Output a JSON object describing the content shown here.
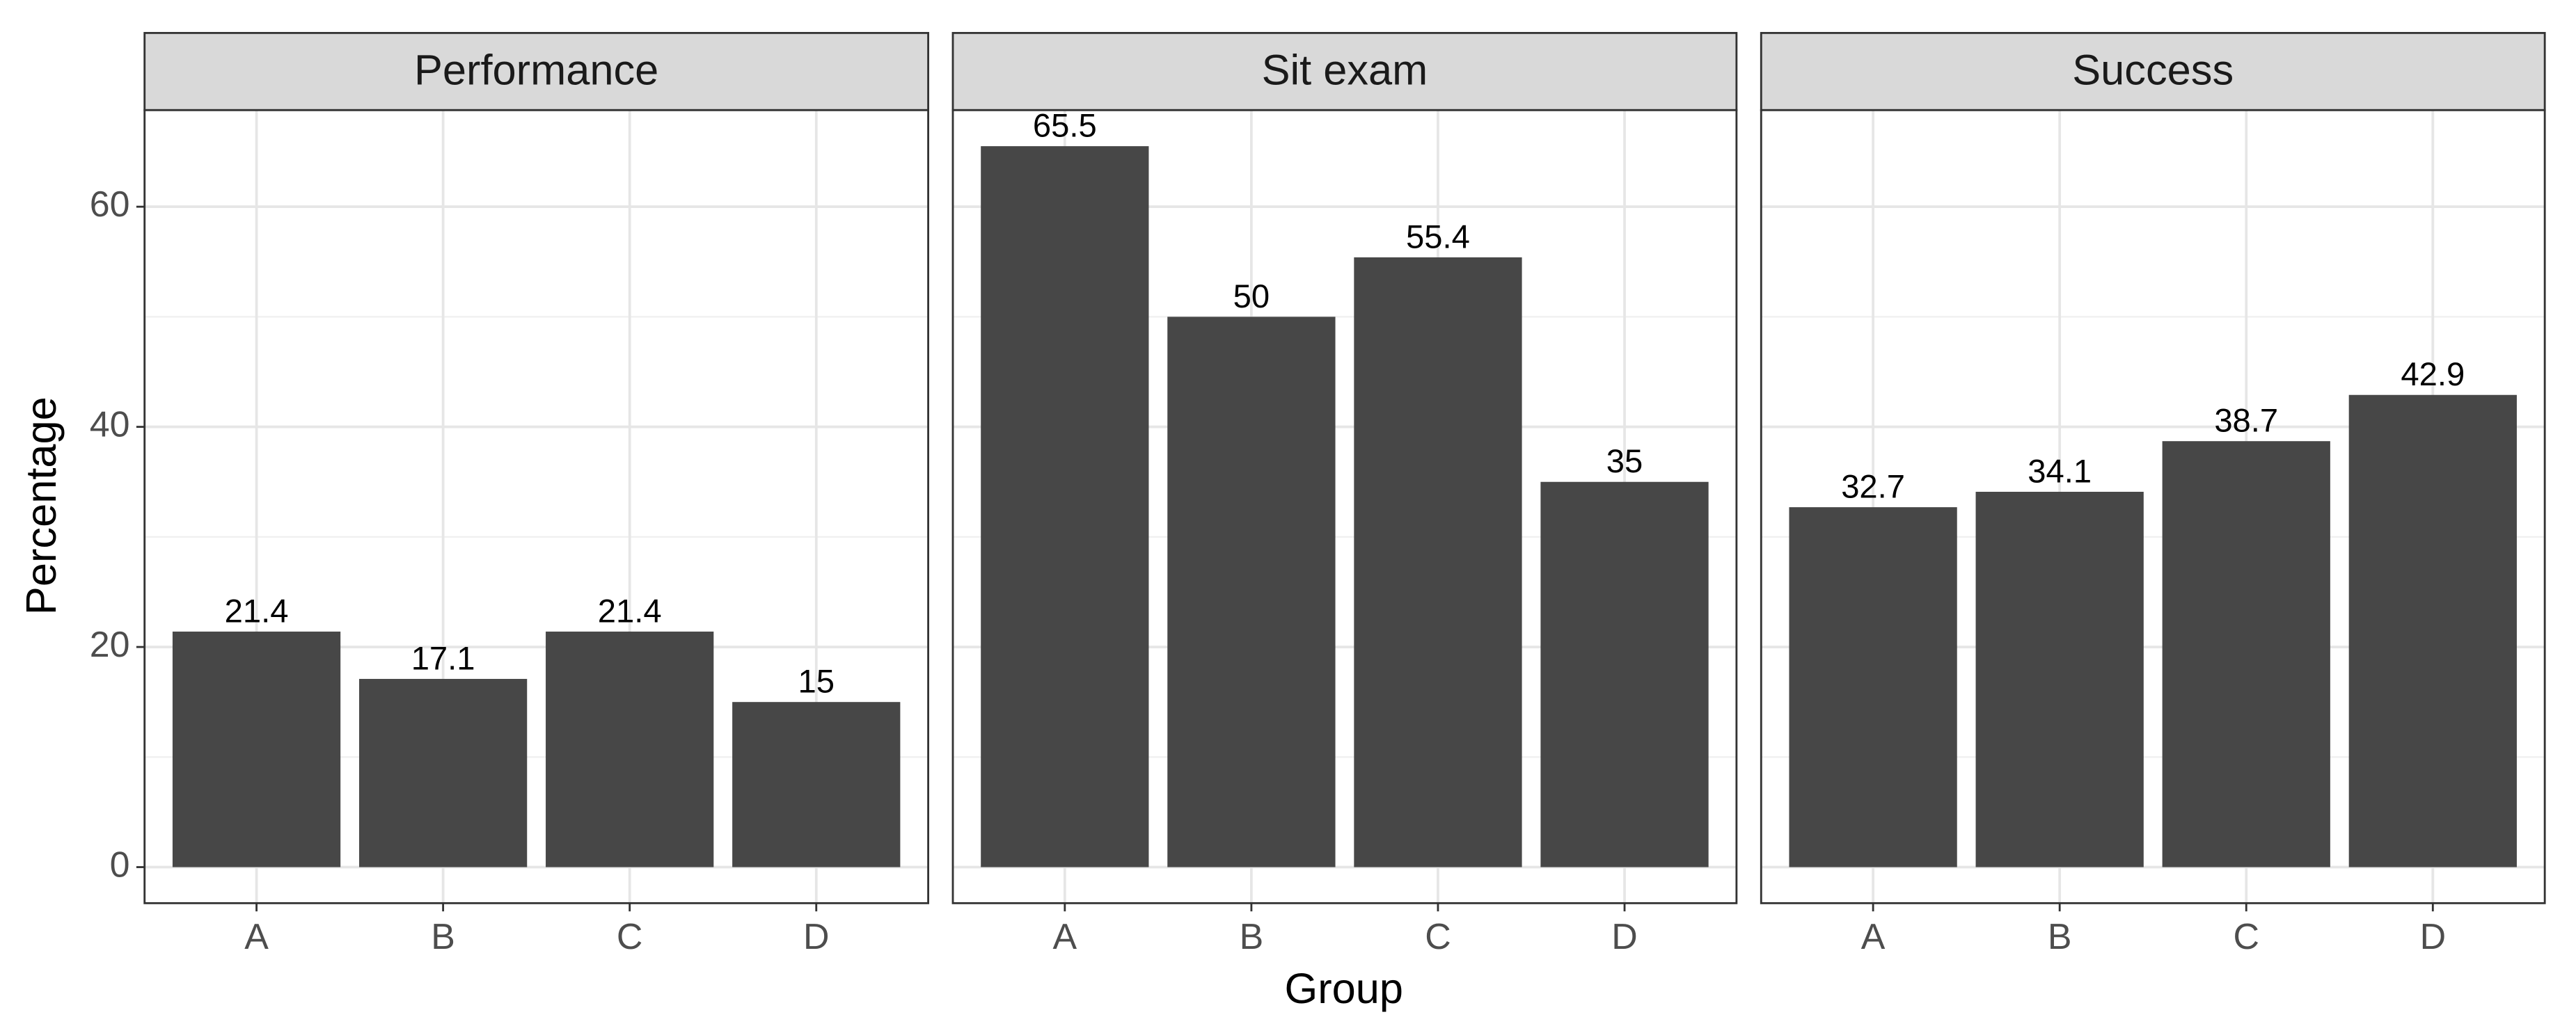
{
  "axis_labels": {
    "x": "Group",
    "y": "Percentage"
  },
  "chart_data": [
    {
      "type": "bar",
      "title": "Performance",
      "categories": [
        "A",
        "B",
        "C",
        "D"
      ],
      "values": [
        21.4,
        17.1,
        21.4,
        15
      ],
      "color": "#474747",
      "ylim": [
        -3.275,
        68.775
      ],
      "yticks": [
        0,
        20,
        40,
        60
      ],
      "minor_yticks": [
        10,
        30,
        50
      ],
      "grid": true
    },
    {
      "type": "bar",
      "title": "Sit exam",
      "categories": [
        "A",
        "B",
        "C",
        "D"
      ],
      "values": [
        65.5,
        50,
        55.4,
        35
      ],
      "color": "#474747",
      "ylim": [
        -3.275,
        68.775
      ],
      "yticks": [
        0,
        20,
        40,
        60
      ],
      "minor_yticks": [
        10,
        30,
        50
      ],
      "grid": true
    },
    {
      "type": "bar",
      "title": "Success",
      "categories": [
        "A",
        "B",
        "C",
        "D"
      ],
      "values": [
        32.7,
        34.1,
        38.7,
        42.9
      ],
      "color": "#474747",
      "ylim": [
        -3.275,
        68.775
      ],
      "yticks": [
        0,
        20,
        40,
        60
      ],
      "minor_yticks": [
        10,
        30,
        50
      ],
      "grid": true
    }
  ]
}
